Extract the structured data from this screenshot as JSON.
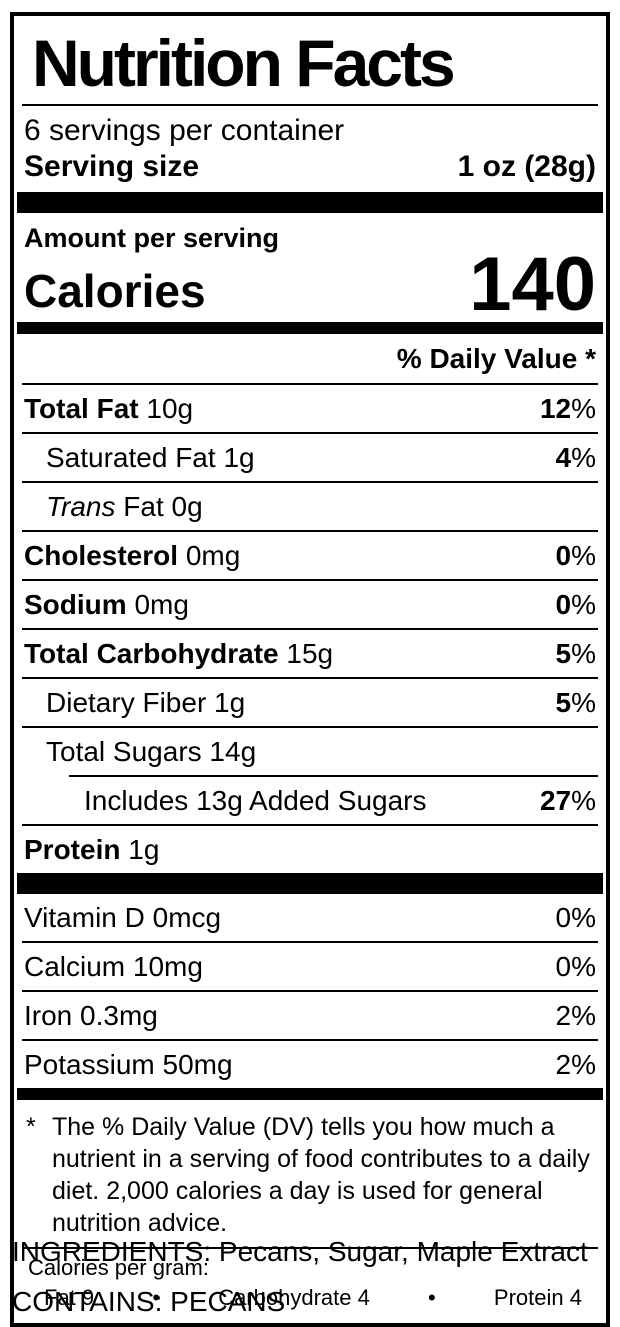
{
  "colors": {
    "ink": "#000000",
    "paper": "#ffffff"
  },
  "label": {
    "title": "Nutrition Facts",
    "servings_per_container": "6 servings per container",
    "serving_size_label": "Serving size",
    "serving_size_value": "1 oz (28g)",
    "amount_per_serving": "Amount per serving",
    "calories_label": "Calories",
    "calories_value": "140",
    "daily_value_header": "% Daily Value *",
    "nutrients": [
      {
        "name": "Total Fat",
        "rest": "10g",
        "dv_num": "12",
        "dv_pct": "%"
      },
      {
        "name": "Saturated Fat",
        "rest": "1g",
        "dv_num": "4",
        "dv_pct": "%"
      },
      {
        "name": "Trans",
        "rest": "Fat 0g",
        "dv_num": "",
        "dv_pct": ""
      },
      {
        "name": "Cholesterol",
        "rest": "0mg",
        "dv_num": "0",
        "dv_pct": "%"
      },
      {
        "name": "Sodium",
        "rest": "0mg",
        "dv_num": "0",
        "dv_pct": "%"
      },
      {
        "name": "Total Carbohydrate",
        "rest": "15g",
        "dv_num": "5",
        "dv_pct": "%"
      },
      {
        "name": "Dietary Fiber",
        "rest": "1g",
        "dv_num": "5",
        "dv_pct": "%"
      },
      {
        "name": "Total Sugars",
        "rest": "14g",
        "dv_num": "",
        "dv_pct": ""
      },
      {
        "name": "Includes 13g Added Sugars",
        "rest": "",
        "dv_num": "27",
        "dv_pct": "%"
      },
      {
        "name": "Protein",
        "rest": "1g",
        "dv_num": "",
        "dv_pct": ""
      }
    ],
    "vitamins": [
      {
        "name": "Vitamin D 0mcg",
        "dv": "0%"
      },
      {
        "name": "Calcium 10mg",
        "dv": "0%"
      },
      {
        "name": "Iron 0.3mg",
        "dv": "2%"
      },
      {
        "name": "Potassium 50mg",
        "dv": "2%"
      }
    ],
    "footnote_marker": "*",
    "footnote": "The % Daily Value (DV) tells you how much a nutrient in a serving of food contributes to a daily diet. 2,000 calories a day is used for general nutrition advice.",
    "calories_per_gram": {
      "heading": "Calories per gram:",
      "bullet": "•",
      "fat": "Fat 9",
      "carbohydrate": "Carbohydrate 4",
      "protein": "Protein 4"
    }
  },
  "below": {
    "ingredients": "INGREDIENTS: Pecans, Sugar, Maple Extract",
    "contains": "CONTAINS: PECANS"
  }
}
